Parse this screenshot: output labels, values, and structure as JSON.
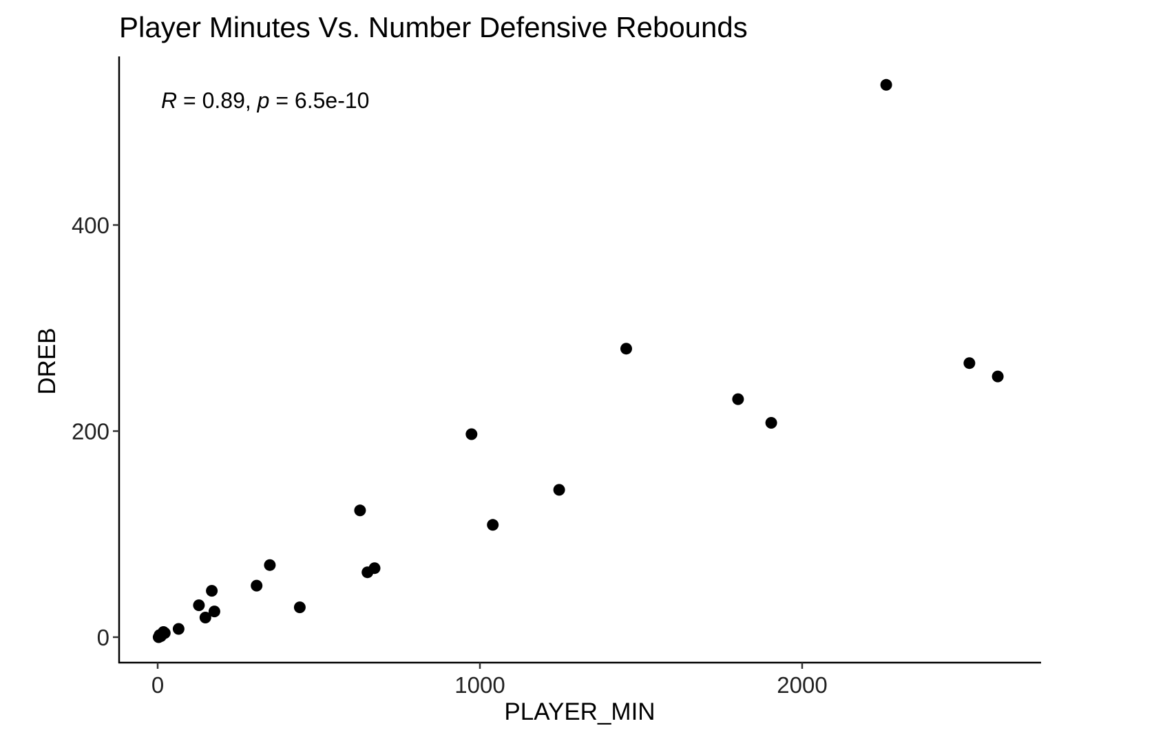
{
  "chart_data": {
    "type": "scatter",
    "title": "Player Minutes Vs. Number Defensive Rebounds",
    "xlabel": "PLAYER_MIN",
    "ylabel": "DREB",
    "xlim": [
      -120,
      2740
    ],
    "ylim": [
      -65,
      555
    ],
    "x_ticks": [
      0,
      1000,
      2000
    ],
    "x_tick_labels": [
      "0",
      "1000",
      "2000"
    ],
    "y_ticks": [
      0,
      200,
      400
    ],
    "y_tick_labels": [
      "0",
      "200",
      "400"
    ],
    "grid": false,
    "legend": "none",
    "annotation": {
      "r_symbol": "R",
      "r_value": " = 0.89, ",
      "p_symbol": "p",
      "p_value": " = 6.5e-10"
    },
    "point_color": "#000000",
    "points": [
      {
        "x": 3,
        "y": 0
      },
      {
        "x": 6,
        "y": 2
      },
      {
        "x": 10,
        "y": 1
      },
      {
        "x": 14,
        "y": 3
      },
      {
        "x": 18,
        "y": 5
      },
      {
        "x": 22,
        "y": 4
      },
      {
        "x": 65,
        "y": 8
      },
      {
        "x": 128,
        "y": 31
      },
      {
        "x": 148,
        "y": 19
      },
      {
        "x": 168,
        "y": 45
      },
      {
        "x": 176,
        "y": 25
      },
      {
        "x": 307,
        "y": 50
      },
      {
        "x": 348,
        "y": 70
      },
      {
        "x": 441,
        "y": 29
      },
      {
        "x": 628,
        "y": 123
      },
      {
        "x": 651,
        "y": 63
      },
      {
        "x": 673,
        "y": 67
      },
      {
        "x": 974,
        "y": 197
      },
      {
        "x": 1040,
        "y": 109
      },
      {
        "x": 1246,
        "y": 143
      },
      {
        "x": 1454,
        "y": 280
      },
      {
        "x": 1801,
        "y": 231
      },
      {
        "x": 1904,
        "y": 208
      },
      {
        "x": 2261,
        "y": 536
      },
      {
        "x": 2519,
        "y": 266
      },
      {
        "x": 2607,
        "y": 253
      }
    ]
  }
}
